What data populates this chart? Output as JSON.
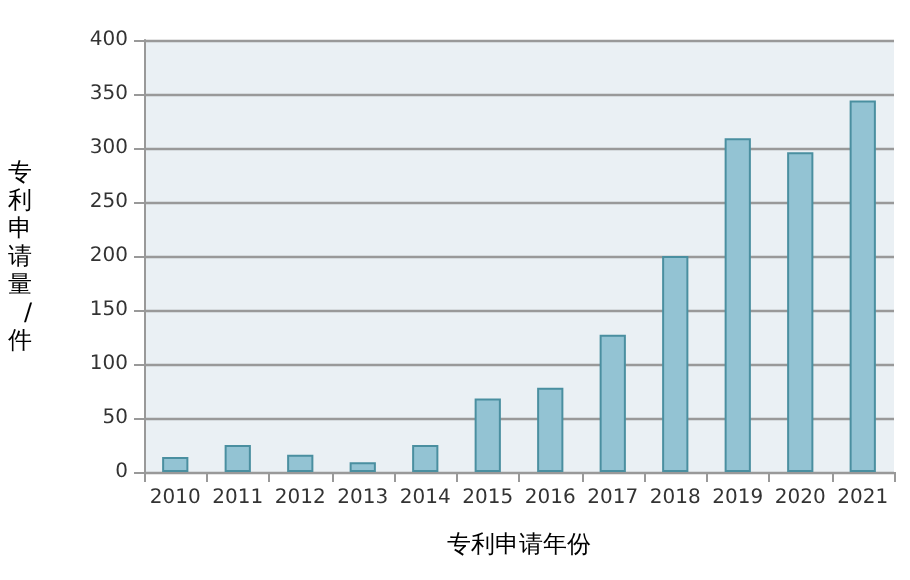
{
  "chart_data": {
    "type": "bar",
    "xlabel": "专利申请年份",
    "ylabel": "专利申请量/件",
    "categories": [
      "2010",
      "2011",
      "2012",
      "2013",
      "2014",
      "2015",
      "2016",
      "2017",
      "2018",
      "2019",
      "2020",
      "2021"
    ],
    "values": [
      14,
      25,
      16,
      9,
      25,
      68,
      78,
      127,
      200,
      309,
      296,
      344
    ],
    "color": "#93c3d3",
    "ylim": [
      0,
      400
    ],
    "yticks": [
      0,
      50,
      100,
      150,
      200,
      250,
      300,
      350,
      400
    ],
    "grid": "y"
  }
}
